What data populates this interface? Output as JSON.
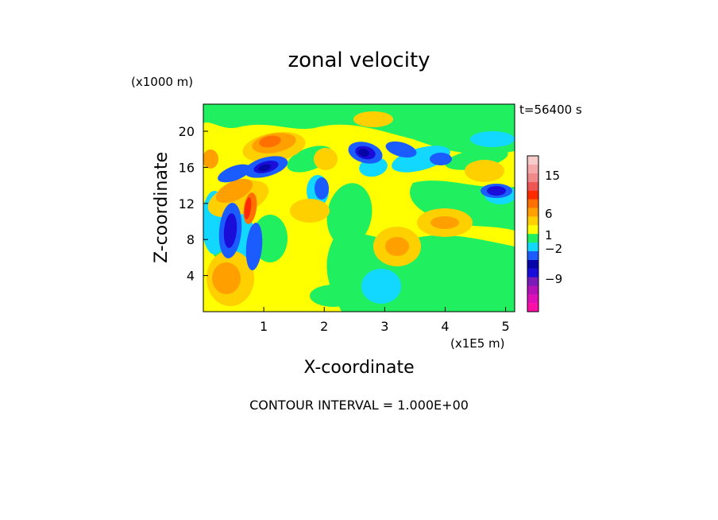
{
  "chart_data": {
    "type": "heatmap",
    "title": "zonal velocity",
    "xlabel": "X-coordinate",
    "ylabel": "Z-coordinate",
    "x_unit": "(x1E5 m)",
    "z_unit": "(x1000 m)",
    "time_label": "t=56400 s",
    "footer": "CONTOUR INTERVAL = 1.000E+00",
    "xlim": [
      0,
      5.15
    ],
    "ylim": [
      0,
      23
    ],
    "xticks": [
      {
        "value": 1,
        "label": "1"
      },
      {
        "value": 2,
        "label": "2"
      },
      {
        "value": 3,
        "label": "3"
      },
      {
        "value": 4,
        "label": "4"
      },
      {
        "value": 5,
        "label": "5"
      }
    ],
    "yticks": [
      {
        "value": 4,
        "label": "4"
      },
      {
        "value": 8,
        "label": "8"
      },
      {
        "value": 12,
        "label": "12"
      },
      {
        "value": 16,
        "label": "16"
      },
      {
        "value": 20,
        "label": "20"
      }
    ],
    "colorbar": {
      "levels": [
        {
          "color": "#ff0ea8"
        },
        {
          "color": "#e010b8"
        },
        {
          "color": "#b411b6"
        },
        {
          "color": "#7a1ab8"
        },
        {
          "color": "#1a0dd9"
        },
        {
          "color": "#0505a8"
        },
        {
          "color": "#1a5cff"
        },
        {
          "color": "#12d7ff"
        },
        {
          "color": "#20f060"
        },
        {
          "color": "#ffff00"
        },
        {
          "color": "#ffd000"
        },
        {
          "color": "#ffa000"
        },
        {
          "color": "#ff7000"
        },
        {
          "color": "#ff2a00"
        },
        {
          "color": "#ee5555"
        },
        {
          "color": "#f08a8a"
        },
        {
          "color": "#f4a8a8"
        },
        {
          "color": "#f9cccc"
        }
      ],
      "labels": [
        {
          "value": 15,
          "label": "15"
        },
        {
          "value": 6,
          "label": "6"
        },
        {
          "value": 1,
          "label": "1"
        },
        {
          "value": -2,
          "label": "−2"
        },
        {
          "value": -9,
          "label": "−9"
        }
      ]
    },
    "field_colors": {
      "background": "#ffff00",
      "positive_weak": "#ffd000",
      "positive_mid": "#ffa000",
      "positive_strong": "#ff7000",
      "positive_peak": "#ff2a00",
      "zero_band": "#20f060",
      "negative_weak": "#12d7ff",
      "negative_mid": "#1a5cff",
      "negative_strong": "#1a0dd9",
      "negative_peak": "#0505a8"
    }
  }
}
